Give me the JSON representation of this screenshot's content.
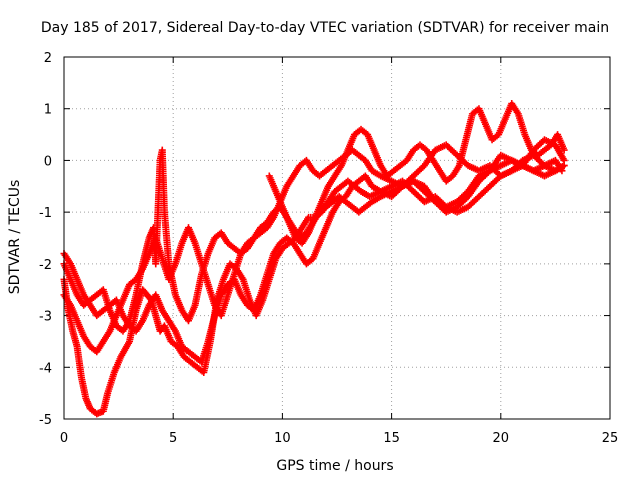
{
  "chart_data": {
    "type": "scatter",
    "title": "Day 185 of 2017, Sidereal Day-to-day VTEC variation (SDTVAR) for receiver main",
    "xlabel": "GPS time / hours",
    "ylabel": "SDTVAR / TECUs",
    "xlim": [
      0,
      25
    ],
    "ylim": [
      -5,
      2
    ],
    "xticks": [
      0,
      5,
      10,
      15,
      20,
      25
    ],
    "yticks": [
      -5,
      -4,
      -3,
      -2,
      -1,
      0,
      1,
      2
    ],
    "grid": true,
    "marker": "plus",
    "color": "#ff0000",
    "series": [
      {
        "x": [
          0.0,
          0.2,
          0.4,
          0.6,
          0.8,
          1.0,
          1.2,
          1.5,
          1.8,
          2.0,
          2.3,
          2.6,
          3.0,
          3.3,
          3.6,
          3.8,
          4.0,
          4.2,
          4.4,
          4.6,
          4.9,
          5.2,
          5.5,
          5.8,
          6.1,
          6.4,
          6.7,
          7.0,
          7.3,
          7.6,
          7.9,
          8.2,
          8.5,
          8.8,
          9.1,
          9.4,
          9.7,
          10.0,
          10.3,
          10.6,
          10.9,
          11.2,
          11.5,
          11.8,
          12.1,
          12.4,
          12.7,
          13.0,
          13.3,
          13.6,
          14.0,
          14.5,
          15.0,
          15.5,
          16.0,
          16.5,
          17.0,
          17.5,
          18.0,
          18.5,
          19.0,
          19.5,
          20.0,
          20.5,
          21.0,
          21.5,
          22.0,
          22.5,
          22.8
        ],
        "y": [
          -2.3,
          -2.9,
          -3.3,
          -3.6,
          -4.2,
          -4.6,
          -4.8,
          -4.9,
          -4.85,
          -4.5,
          -4.1,
          -3.8,
          -3.5,
          -2.9,
          -2.5,
          -2.6,
          -2.7,
          -3.0,
          -3.3,
          -3.2,
          -3.5,
          -3.6,
          -3.8,
          -3.9,
          -4.0,
          -4.1,
          -3.5,
          -2.7,
          -2.3,
          -2.0,
          -2.1,
          -2.3,
          -2.7,
          -3.0,
          -2.7,
          -2.3,
          -1.9,
          -1.7,
          -1.6,
          -1.5,
          -1.3,
          -1.1,
          -1.1,
          -1.0,
          -0.8,
          -0.6,
          -0.5,
          -0.4,
          -0.5,
          -0.6,
          -0.7,
          -0.6,
          -0.5,
          -0.4,
          -0.6,
          -0.8,
          -0.7,
          -0.9,
          -0.8,
          -0.6,
          -0.3,
          -0.2,
          -0.1,
          0.0,
          -0.1,
          -0.2,
          -0.1,
          0.0,
          -0.2
        ]
      },
      {
        "x": [
          0.0,
          0.3,
          0.6,
          0.9,
          1.2,
          1.5,
          1.8,
          2.1,
          2.4,
          2.7,
          3.0,
          3.3,
          3.6,
          3.9,
          4.2,
          4.5,
          4.8,
          5.1,
          5.4,
          5.7,
          6.0,
          6.3,
          6.6,
          6.9,
          7.2,
          7.5,
          7.8,
          8.1,
          8.4,
          8.7,
          9.0,
          9.3,
          9.6,
          9.9,
          10.2,
          10.5,
          10.8,
          11.1,
          11.4,
          11.7,
          12.0,
          12.3,
          12.6,
          12.9,
          13.2,
          13.5,
          13.8,
          14.1,
          14.5,
          15.0,
          15.5,
          16.0,
          16.5,
          17.0,
          17.5,
          18.0,
          18.5,
          19.0,
          19.5,
          20.0,
          20.5,
          21.0,
          21.5,
          22.0,
          22.5,
          22.9
        ],
        "y": [
          -1.8,
          -2.0,
          -2.3,
          -2.6,
          -2.8,
          -3.0,
          -2.9,
          -2.8,
          -2.7,
          -3.0,
          -3.2,
          -3.3,
          -3.1,
          -2.8,
          -2.6,
          -2.9,
          -3.1,
          -3.3,
          -3.6,
          -3.7,
          -3.8,
          -3.9,
          -3.5,
          -3.0,
          -2.6,
          -2.4,
          -2.3,
          -2.6,
          -2.8,
          -2.9,
          -2.6,
          -2.2,
          -1.8,
          -1.6,
          -1.5,
          -1.6,
          -1.8,
          -2.0,
          -1.9,
          -1.6,
          -1.3,
          -1.0,
          -0.8,
          -0.7,
          -0.5,
          -0.4,
          -0.3,
          -0.5,
          -0.6,
          -0.7,
          -0.5,
          -0.4,
          -0.5,
          -0.8,
          -1.0,
          -0.9,
          -0.7,
          -0.4,
          -0.2,
          0.1,
          0.0,
          -0.1,
          0.2,
          0.4,
          0.3,
          0.0
        ]
      },
      {
        "x": [
          0.0,
          0.3,
          0.6,
          0.9,
          1.2,
          1.5,
          1.8,
          2.1,
          2.4,
          2.7,
          3.0,
          3.3,
          3.6,
          3.9,
          4.2,
          4.5,
          4.8,
          5.1,
          5.4,
          5.7,
          6.0,
          6.3,
          6.6,
          6.9,
          7.2,
          7.5,
          7.8,
          8.1,
          8.4,
          8.7,
          9.0,
          9.3,
          9.6,
          9.9,
          10.2,
          10.5,
          10.8,
          11.1,
          11.4,
          11.7,
          12.0,
          12.3,
          12.6,
          12.9,
          13.2,
          13.5,
          13.8,
          14.1,
          14.5,
          15.0,
          15.5,
          16.0,
          16.5,
          17.0,
          17.5,
          18.0,
          18.5,
          19.0,
          19.5,
          20.0,
          20.5,
          21.0,
          21.5,
          22.0,
          22.5,
          22.9
        ],
        "y": [
          -2.6,
          -2.8,
          -3.1,
          -3.4,
          -3.6,
          -3.7,
          -3.5,
          -3.3,
          -3.0,
          -2.7,
          -2.4,
          -2.3,
          -2.1,
          -1.8,
          -1.5,
          -1.9,
          -2.3,
          -2.0,
          -1.6,
          -1.3,
          -1.6,
          -2.0,
          -2.4,
          -2.8,
          -3.0,
          -2.6,
          -2.2,
          -1.8,
          -1.6,
          -1.5,
          -1.4,
          -1.3,
          -1.1,
          -0.8,
          -0.5,
          -0.3,
          -0.1,
          0.0,
          -0.2,
          -0.3,
          -0.2,
          -0.1,
          0.0,
          0.1,
          0.2,
          0.1,
          0.0,
          -0.2,
          -0.3,
          -0.4,
          -0.5,
          -0.3,
          -0.1,
          0.2,
          0.3,
          0.1,
          -0.1,
          -0.2,
          -0.1,
          -0.3,
          -0.2,
          0.0,
          0.1,
          -0.1,
          -0.2,
          -0.1
        ]
      },
      {
        "x": [
          0.0,
          0.3,
          0.6,
          0.9,
          1.2,
          1.5,
          1.8,
          2.1,
          2.4,
          2.7,
          3.0,
          3.3,
          3.6,
          3.9,
          4.1,
          4.2,
          4.3,
          4.4,
          4.5,
          4.6,
          4.8,
          5.1,
          5.4,
          5.7,
          6.0,
          6.3,
          6.6,
          6.9,
          7.2,
          7.5,
          7.8,
          8.1,
          8.4,
          8.7,
          9.0,
          9.3,
          9.6,
          9.9,
          10.2,
          10.5,
          10.8,
          11.1,
          11.4,
          11.7,
          12.0,
          12.3,
          12.6,
          12.9,
          13.2,
          13.5,
          13.8,
          14.1,
          14.5,
          15.0,
          15.5,
          16.0,
          16.5,
          17.0,
          17.5,
          18.0,
          18.5,
          19.0,
          19.5,
          20.0,
          20.5,
          21.0,
          21.5,
          22.0,
          22.5,
          22.9
        ],
        "y": [
          -2.0,
          -2.3,
          -2.6,
          -2.8,
          -2.7,
          -2.6,
          -2.5,
          -2.9,
          -3.2,
          -3.3,
          -3.1,
          -2.6,
          -2.0,
          -1.5,
          -1.3,
          -2.0,
          -1.0,
          0.0,
          0.2,
          -1.0,
          -2.0,
          -2.6,
          -2.9,
          -3.1,
          -2.8,
          -2.2,
          -1.8,
          -1.5,
          -1.4,
          -1.6,
          -1.7,
          -1.8,
          -1.7,
          -1.5,
          -1.3,
          -1.2,
          -1.0,
          -0.9,
          -1.1,
          -1.3,
          -1.5,
          -1.4,
          -1.2,
          -1.0,
          -0.9,
          -0.8,
          -0.7,
          -0.8,
          -0.9,
          -1.0,
          -0.9,
          -0.8,
          -0.7,
          -0.6,
          -0.5,
          -0.4,
          -0.6,
          -0.8,
          -0.9,
          -1.0,
          -0.9,
          -0.7,
          -0.5,
          -0.3,
          -0.2,
          -0.1,
          -0.2,
          -0.3,
          -0.2,
          -0.1
        ]
      },
      {
        "x": [
          9.4,
          9.7,
          10.0,
          10.3,
          10.6,
          10.9,
          11.2,
          11.5,
          11.8,
          12.1,
          12.4,
          12.7,
          13.0,
          13.3,
          13.6,
          13.9,
          14.2,
          14.5,
          14.8,
          15.1,
          15.4,
          15.7,
          16.0,
          16.3,
          16.6,
          16.9,
          17.2,
          17.5,
          17.8,
          18.1,
          18.4,
          18.7,
          19.0,
          19.3,
          19.6,
          19.9,
          20.2,
          20.5,
          20.8,
          21.1,
          21.4,
          21.7,
          22.0,
          22.3,
          22.6,
          22.9
        ],
        "y": [
          -0.3,
          -0.6,
          -0.9,
          -1.2,
          -1.5,
          -1.6,
          -1.4,
          -1.1,
          -0.8,
          -0.5,
          -0.3,
          -0.1,
          0.2,
          0.5,
          0.6,
          0.5,
          0.2,
          -0.1,
          -0.3,
          -0.2,
          -0.1,
          0.0,
          0.2,
          0.3,
          0.2,
          0.0,
          -0.2,
          -0.4,
          -0.3,
          -0.1,
          0.4,
          0.9,
          1.0,
          0.7,
          0.4,
          0.5,
          0.8,
          1.1,
          0.9,
          0.5,
          0.2,
          0.1,
          0.2,
          0.3,
          0.5,
          0.2
        ]
      }
    ]
  }
}
